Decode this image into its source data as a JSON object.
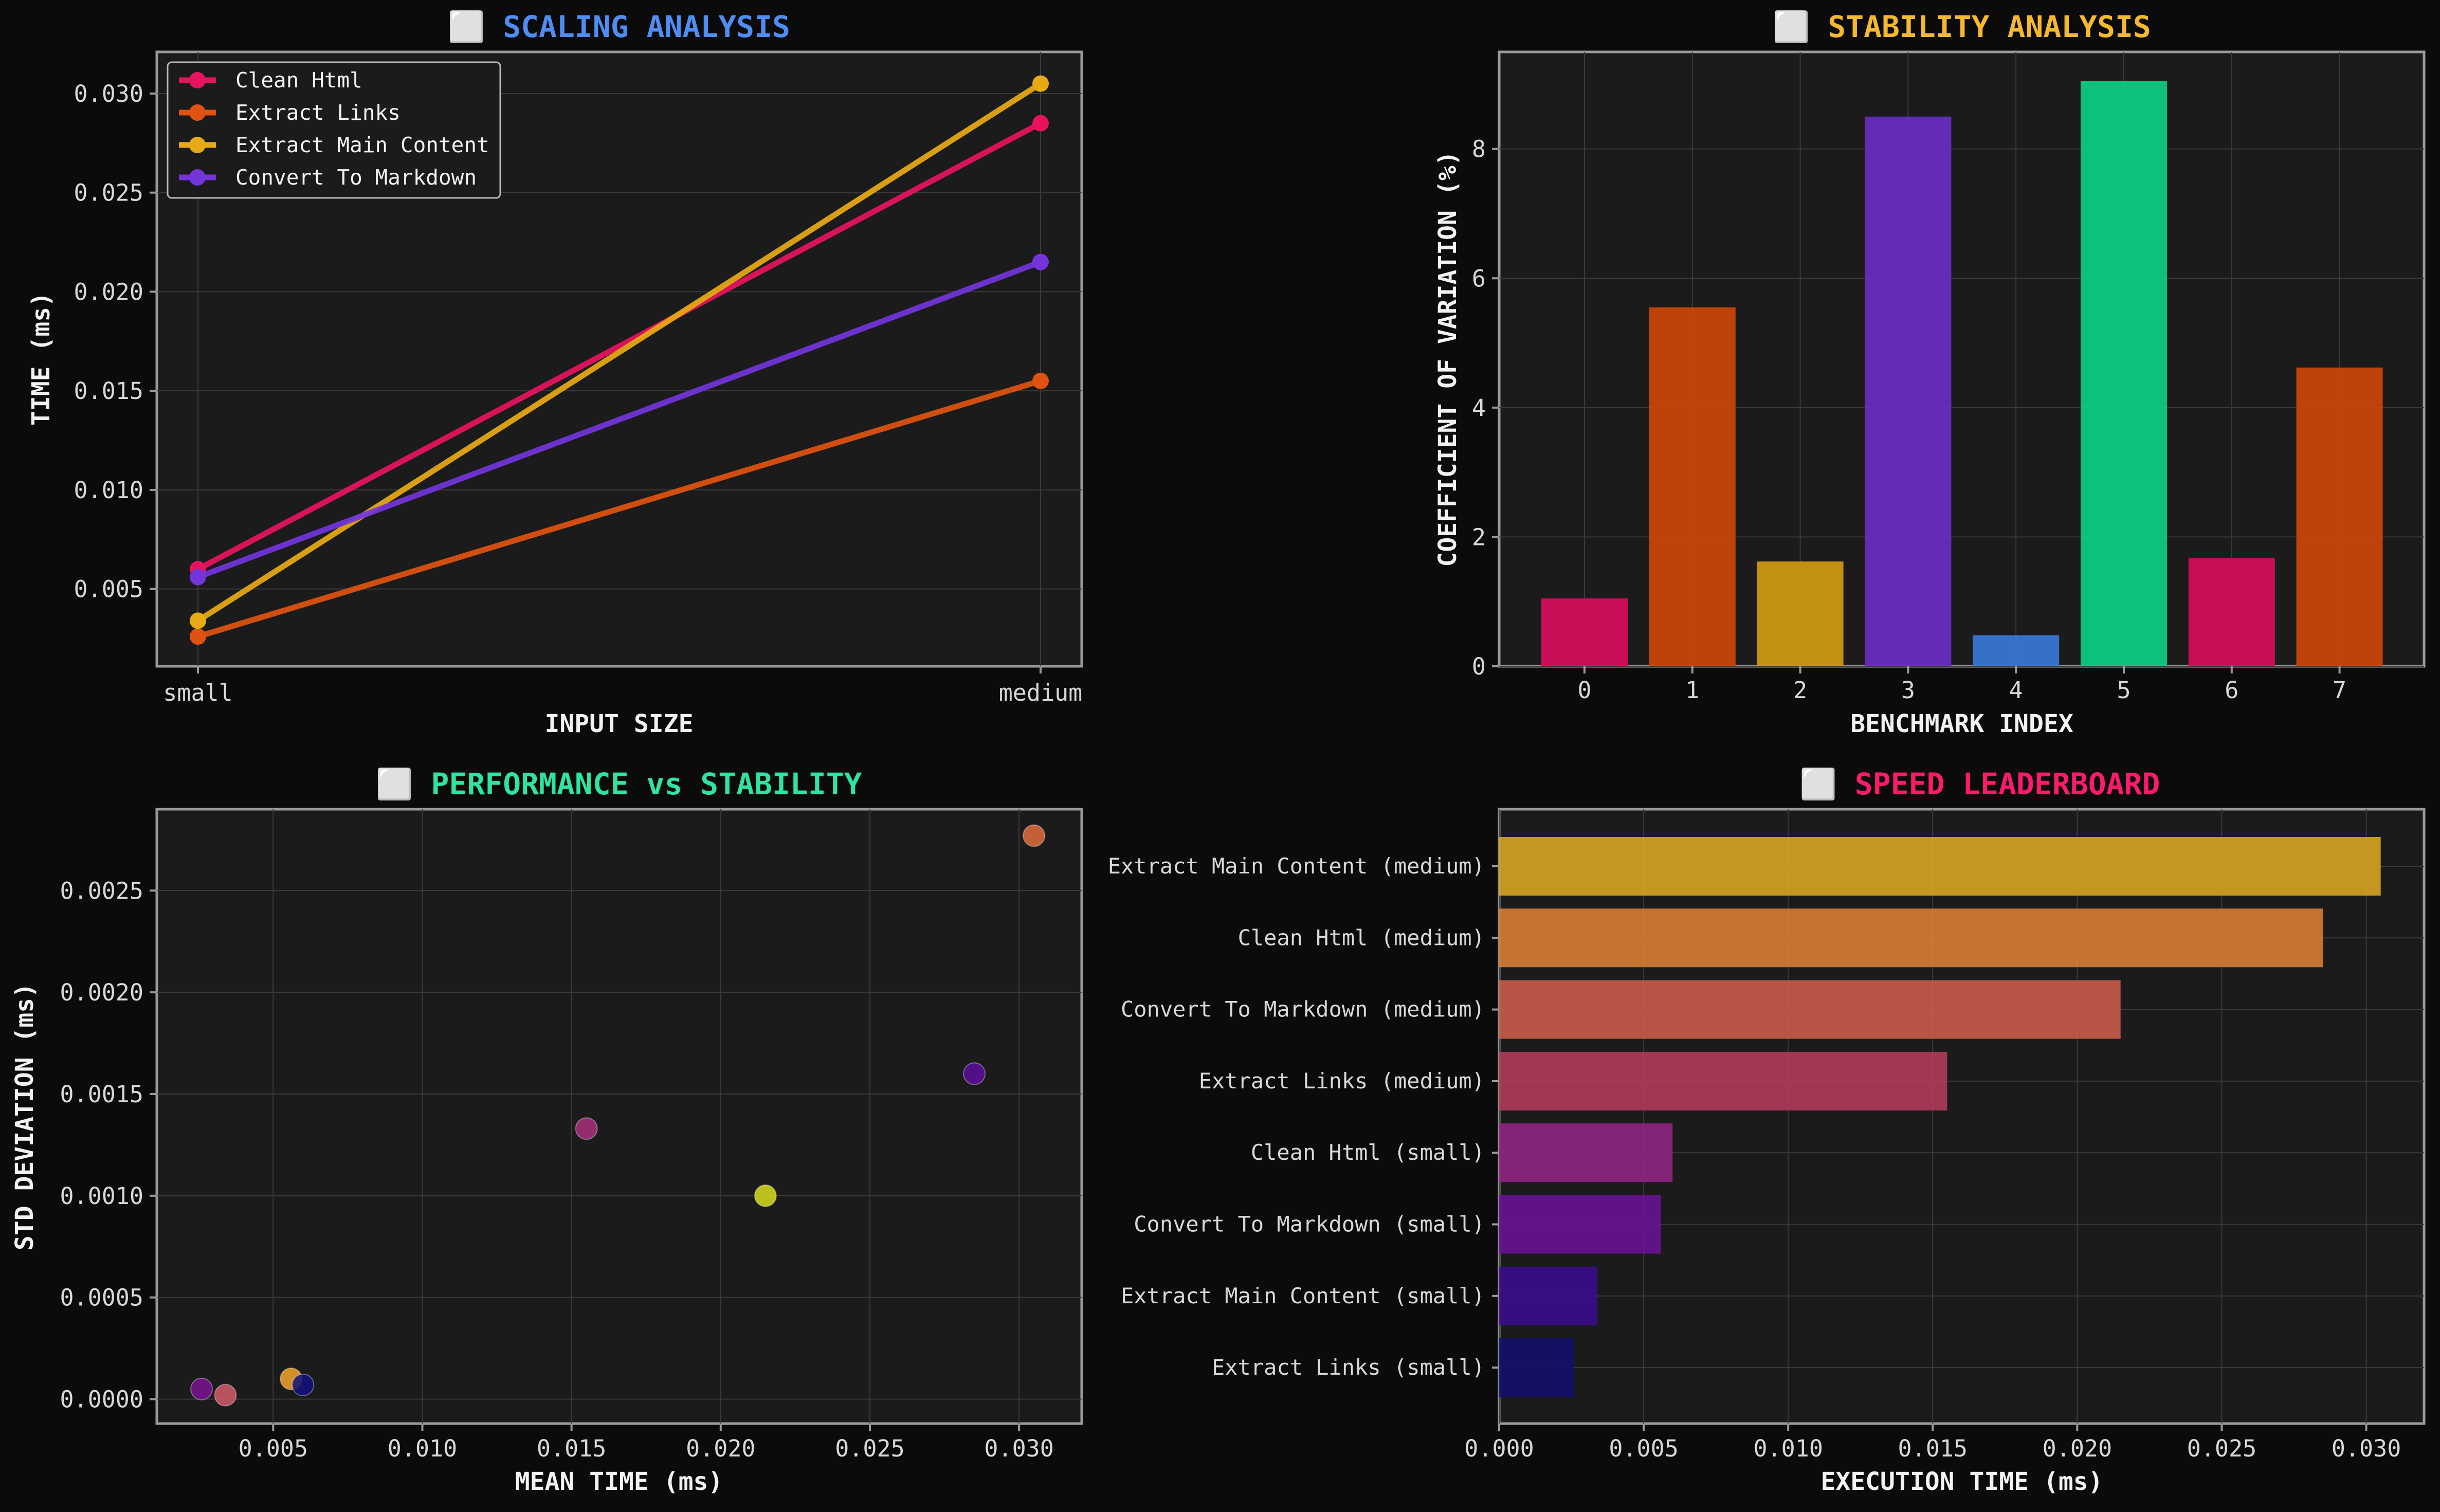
{
  "colors": {
    "background": "#0b0b0b",
    "panel": "#1b1b1b",
    "title_blue": "#4f8df5",
    "title_amber": "#f5b82e",
    "title_green": "#2fe3a0",
    "title_pink": "#ff1a6c"
  },
  "chart_data": [
    {
      "type": "line",
      "title": "⬜ SCALING ANALYSIS",
      "xlabel": "INPUT SIZE",
      "ylabel": "TIME (ms)",
      "categories": [
        "small",
        "medium"
      ],
      "ylim": [
        0.0011,
        0.0321
      ],
      "yticks": [
        0.005,
        0.01,
        0.015,
        0.02,
        0.025,
        0.03
      ],
      "ytick_labels": [
        "0.005",
        "0.010",
        "0.015",
        "0.020",
        "0.025",
        "0.030"
      ],
      "grid": true,
      "legend_position": "top-left",
      "series": [
        {
          "name": "Clean Html",
          "values": [
            0.006,
            0.0285
          ],
          "color": "#e8125e"
        },
        {
          "name": "Extract Links",
          "values": [
            0.0026,
            0.0155
          ],
          "color": "#e0520f"
        },
        {
          "name": "Extract Main Content",
          "values": [
            0.0034,
            0.0305
          ],
          "color": "#e8aa14"
        },
        {
          "name": "Convert To Markdown",
          "values": [
            0.0056,
            0.0215
          ],
          "color": "#7334dc"
        }
      ]
    },
    {
      "type": "bar",
      "title": "⬜ STABILITY ANALYSIS",
      "xlabel": "BENCHMARK INDEX",
      "ylabel": "COEFFICIENT OF VARIATION (%)",
      "categories": [
        "0",
        "1",
        "2",
        "3",
        "4",
        "5",
        "6",
        "7"
      ],
      "values": [
        1.05,
        5.55,
        1.62,
        8.5,
        0.48,
        9.05,
        1.67,
        4.62
      ],
      "colors": [
        "#d80d5c",
        "#cb4609",
        "#d19b10",
        "#6b2cc4",
        "#3a78d6",
        "#0ccf86",
        "#d80d5c",
        "#cb4609"
      ],
      "ylim": [
        0,
        9.5
      ],
      "yticks": [
        0,
        2,
        4,
        6,
        8
      ],
      "ytick_labels": [
        "0",
        "2",
        "4",
        "6",
        "8"
      ],
      "grid": true
    },
    {
      "type": "scatter",
      "title": "⬜ PERFORMANCE vs STABILITY",
      "xlabel": "MEAN TIME (ms)",
      "ylabel": "STD DEVIATION (ms)",
      "xlim": [
        0.0011,
        0.0321
      ],
      "ylim": [
        -0.00012,
        0.0029
      ],
      "xticks": [
        0.005,
        0.01,
        0.015,
        0.02,
        0.025,
        0.03
      ],
      "xtick_labels": [
        "0.005",
        "0.010",
        "0.015",
        "0.020",
        "0.025",
        "0.030"
      ],
      "yticks": [
        0.0,
        0.0005,
        0.001,
        0.0015,
        0.002,
        0.0025
      ],
      "ytick_labels": [
        "0.0000",
        "0.0005",
        "0.0010",
        "0.0015",
        "0.0020",
        "0.0025"
      ],
      "grid": true,
      "points": [
        {
          "x": 0.0305,
          "y": 0.00277,
          "color": "#e36b3d"
        },
        {
          "x": 0.0285,
          "y": 0.0016,
          "color": "#5a0e9a"
        },
        {
          "x": 0.0155,
          "y": 0.00133,
          "color": "#a9307c"
        },
        {
          "x": 0.0215,
          "y": 0.001,
          "color": "#d8dd1c"
        },
        {
          "x": 0.0056,
          "y": 0.0001,
          "color": "#f5a42a"
        },
        {
          "x": 0.006,
          "y": 7e-05,
          "color": "#12107a"
        },
        {
          "x": 0.0026,
          "y": 5e-05,
          "color": "#7a1292"
        },
        {
          "x": 0.0034,
          "y": 2e-05,
          "color": "#d35b6a"
        }
      ]
    },
    {
      "type": "bar",
      "orientation": "horizontal",
      "title": "⬜ SPEED LEADERBOARD",
      "xlabel": "EXECUTION TIME (ms)",
      "categories": [
        "Extract Main Content (medium)",
        "Clean Html (medium)",
        "Convert To Markdown (medium)",
        "Extract Links (medium)",
        "Clean Html (small)",
        "Convert To Markdown (small)",
        "Extract Main Content (small)",
        "Extract Links (small)"
      ],
      "values": [
        0.0305,
        0.0285,
        0.0215,
        0.0155,
        0.006,
        0.0056,
        0.0034,
        0.0026
      ],
      "colors": [
        "#dca824",
        "#dd8036",
        "#cc5c4c",
        "#b33c5c",
        "#932684",
        "#6a1294",
        "#3b0c8e",
        "#13106e"
      ],
      "xlim": [
        0,
        0.032
      ],
      "xticks": [
        0,
        0.005,
        0.01,
        0.015,
        0.02,
        0.025,
        0.03
      ],
      "xtick_labels": [
        "0.000",
        "0.005",
        "0.010",
        "0.015",
        "0.020",
        "0.025",
        "0.030"
      ],
      "grid": true
    }
  ]
}
